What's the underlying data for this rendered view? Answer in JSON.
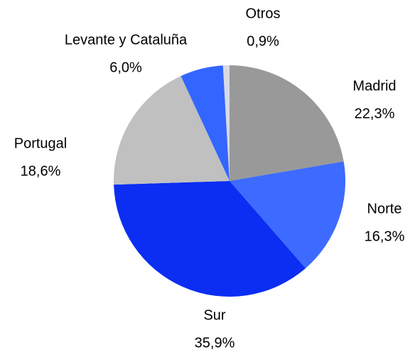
{
  "chart_data": {
    "type": "pie",
    "categories": [
      "Madrid",
      "Norte",
      "Sur",
      "Portugal",
      "Levante y Cataluña",
      "Otros"
    ],
    "values": [
      22.3,
      16.3,
      35.9,
      18.6,
      6.0,
      0.9
    ],
    "value_labels": [
      "22,3%",
      "16,3%",
      "35,9%",
      "18,6%",
      "6,0%",
      "0,9%"
    ],
    "colors": [
      "#999999",
      "#3d6bff",
      "#0b2ef2",
      "#c0c0c0",
      "#3366ff",
      "#d9d9e6"
    ]
  }
}
